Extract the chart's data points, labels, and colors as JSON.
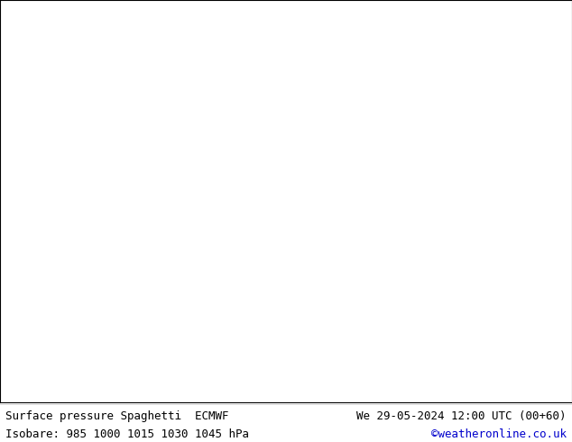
{
  "title_left": "Surface pressure Spaghetti  ECMWF",
  "title_right": "We 29-05-2024 12:00 UTC (00+60)",
  "subtitle_left": "Isobare: 985 1000 1015 1030 1045 hPa",
  "subtitle_right": "©weatheronline.co.uk",
  "subtitle_right_color": "#0000cc",
  "bg_color": "#ffffff",
  "land_color": "#ccffcc",
  "sea_color": "#ffffff",
  "footer_bg": "#ffffff",
  "footer_text_color": "#000000",
  "map_extent": [
    -20,
    45,
    35,
    72
  ],
  "figsize": [
    6.34,
    4.9
  ],
  "dpi": 100,
  "font_size_title": 9,
  "font_size_subtitle": 9,
  "spaghetti_colors": [
    "#000000",
    "#ff0000",
    "#0000ff",
    "#00aa00",
    "#ff00ff",
    "#ffaa00",
    "#00ffff",
    "#aa0000",
    "#0000aa",
    "#888888"
  ],
  "contour_levels": [
    985,
    1000,
    1015,
    1030,
    1045
  ],
  "label_text_size": 6
}
